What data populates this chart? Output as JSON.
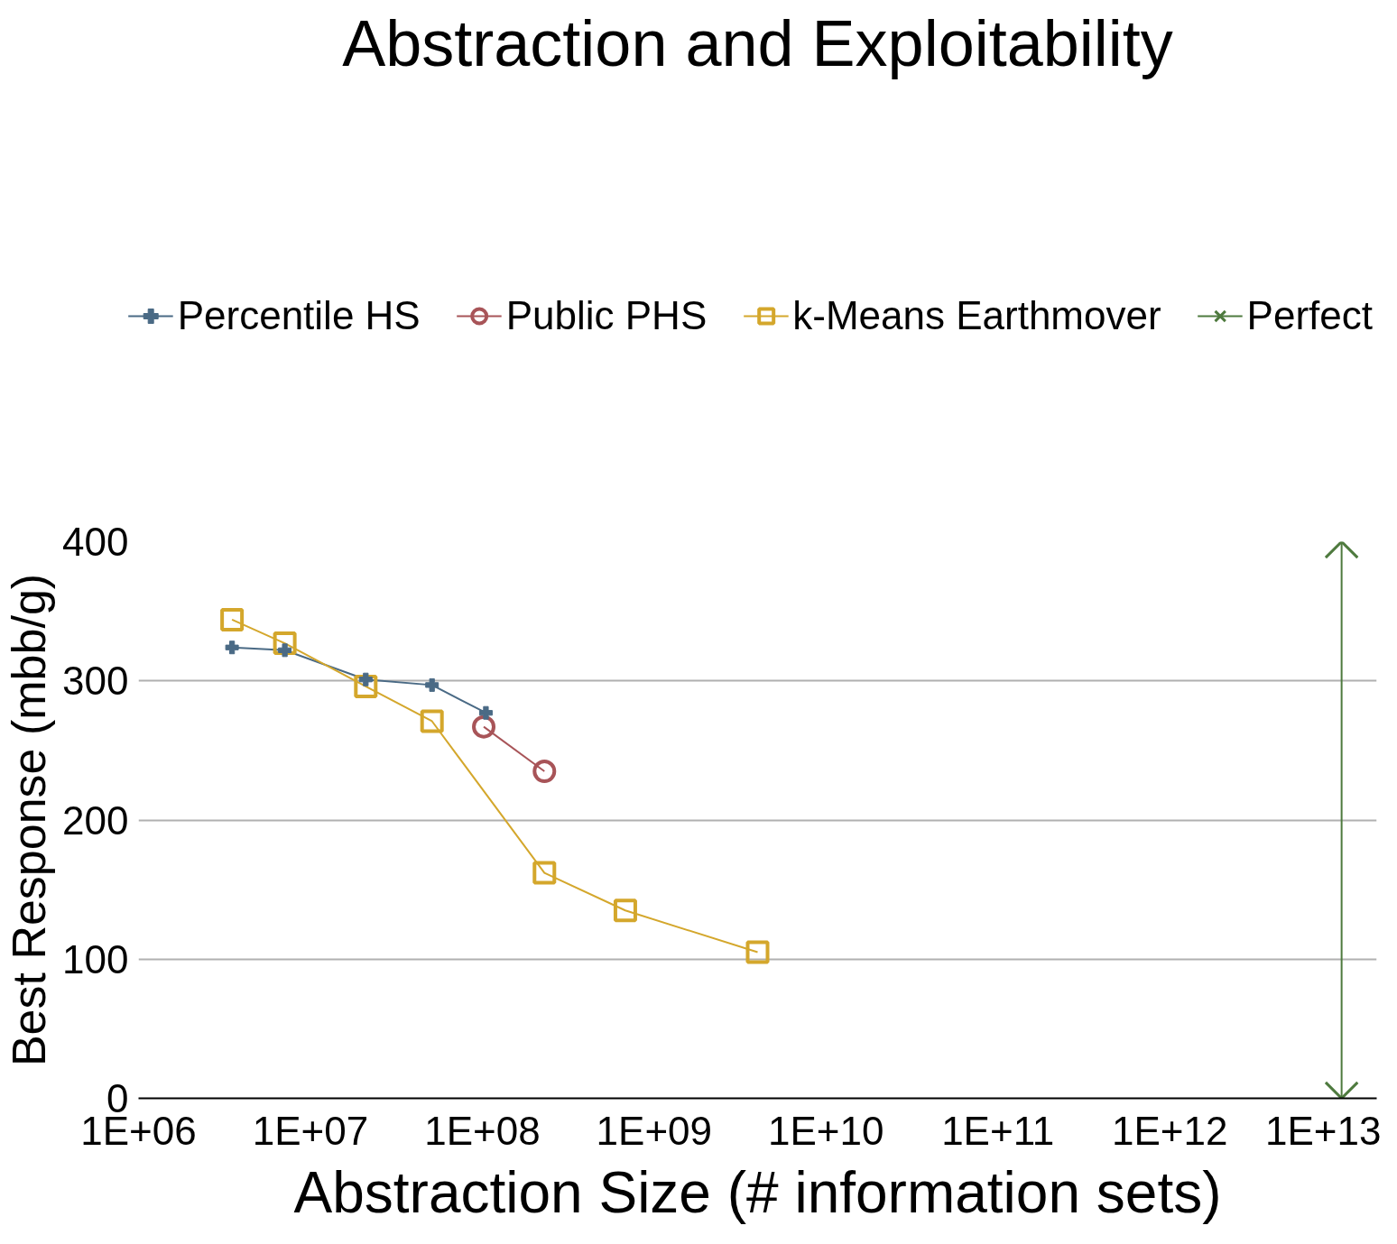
{
  "chart_data": {
    "type": "line",
    "title": "Abstraction and Exploitability",
    "xlabel": "Abstraction Size (# information sets)",
    "ylabel": "Best Response (mbb/g)",
    "log": "x",
    "xlim": [
      1000000,
      16000000000000
    ],
    "xticks": [
      {
        "value": 1000000,
        "label": "1E+06"
      },
      {
        "value": 10000000,
        "label": "1E+07"
      },
      {
        "value": 100000000,
        "label": "1E+08"
      },
      {
        "value": 1000000000,
        "label": "1E+09"
      },
      {
        "value": 10000000000,
        "label": "1E+10"
      },
      {
        "value": 100000000000,
        "label": "1E+11"
      },
      {
        "value": 1000000000000,
        "label": "1E+12"
      },
      {
        "value": 10000000000000,
        "label": "1E+13"
      }
    ],
    "ylim": [
      0,
      400
    ],
    "yticks": [
      0,
      100,
      200,
      300,
      400
    ],
    "grid": "y",
    "legend": "top",
    "series": [
      {
        "name": "Percentile HS",
        "color": "#4a6a85",
        "marker": "cross",
        "x": [
          3500000,
          7100000,
          21000000,
          51000000,
          105000000
        ],
        "values": [
          324,
          322,
          301,
          297,
          277
        ]
      },
      {
        "name": "Public PHS",
        "color": "#a85458",
        "marker": "circle",
        "x": [
          102000000,
          230000000
        ],
        "values": [
          267,
          235
        ]
      },
      {
        "name": "k-Means Earthmover",
        "color": "#d4a72c",
        "marker": "square",
        "x": [
          3500000,
          7100000,
          21000000,
          51000000,
          230000000,
          680000000,
          4000000000
        ],
        "values": [
          344,
          327,
          296,
          271,
          162,
          135,
          105
        ]
      },
      {
        "name": "Perfect",
        "color": "#4e7a3e",
        "marker": "x",
        "x": [
          10000000000000,
          10000000000000
        ],
        "values": [
          400,
          0
        ]
      }
    ]
  }
}
